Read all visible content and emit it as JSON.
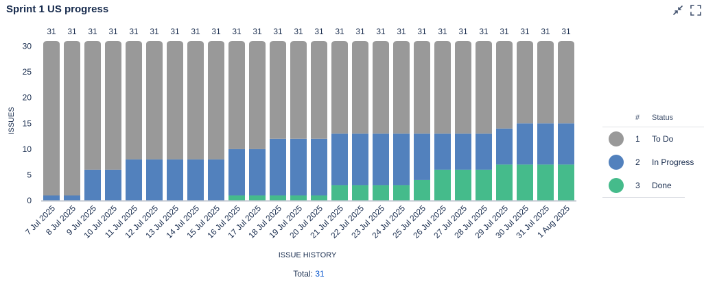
{
  "widget": {
    "title": "Sprint 1 US progress",
    "total_label": "Total:",
    "total_value": "31",
    "collapse_icon": "collapse-icon",
    "fullscreen_icon": "fullscreen-icon"
  },
  "legend": {
    "col_num": "#",
    "col_status": "Status",
    "items": [
      {
        "num": "1",
        "name": "To Do",
        "color": "#999999"
      },
      {
        "num": "2",
        "name": "In Progress",
        "color": "#5281bd"
      },
      {
        "num": "3",
        "name": "Done",
        "color": "#45bb8b"
      }
    ]
  },
  "chart_data": {
    "type": "bar",
    "stacked": true,
    "xlabel": "ISSUE HISTORY",
    "ylabel": "ISSUES",
    "ylim": [
      0,
      31
    ],
    "yticks": [
      0,
      5,
      10,
      15,
      20,
      25,
      30
    ],
    "categories": [
      "7 Jul 2025",
      "8 Jul 2025",
      "9 Jul 2025",
      "10 Jul 2025",
      "11 Jul 2025",
      "12 Jul 2025",
      "13 Jul 2025",
      "14 Jul 2025",
      "15 Jul 2025",
      "16 Jul 2025",
      "17 Jul 2025",
      "18 Jul 2025",
      "19 Jul 2025",
      "20 Jul 2025",
      "21 Jul 2025",
      "22 Jul 2025",
      "23 Jul 2025",
      "24 Jul 2025",
      "25 Jul 2025",
      "26 Jul 2025",
      "27 Jul 2025",
      "28 Jul 2025",
      "29 Jul 2025",
      "30 Jul 2025",
      "31 Jul 2025",
      "1 Aug 2025"
    ],
    "totals": [
      31,
      31,
      31,
      31,
      31,
      31,
      31,
      31,
      31,
      31,
      31,
      31,
      31,
      31,
      31,
      31,
      31,
      31,
      31,
      31,
      31,
      31,
      31,
      31,
      31,
      31
    ],
    "series": [
      {
        "name": "Done",
        "color": "#45bb8b",
        "values": [
          0,
          0,
          0,
          0,
          0,
          0,
          0,
          0,
          0,
          1,
          1,
          1,
          1,
          1,
          3,
          3,
          3,
          3,
          4,
          6,
          6,
          6,
          7,
          7,
          7,
          7
        ]
      },
      {
        "name": "In Progress",
        "color": "#5281bd",
        "values": [
          1,
          1,
          6,
          6,
          8,
          8,
          8,
          8,
          8,
          9,
          9,
          11,
          11,
          11,
          10,
          10,
          10,
          10,
          9,
          7,
          7,
          7,
          7,
          8,
          8,
          8
        ]
      },
      {
        "name": "To Do",
        "color": "#999999",
        "values": [
          30,
          30,
          25,
          25,
          23,
          23,
          23,
          23,
          23,
          21,
          21,
          19,
          19,
          19,
          18,
          18,
          18,
          18,
          18,
          18,
          18,
          18,
          17,
          16,
          16,
          16
        ]
      }
    ]
  }
}
